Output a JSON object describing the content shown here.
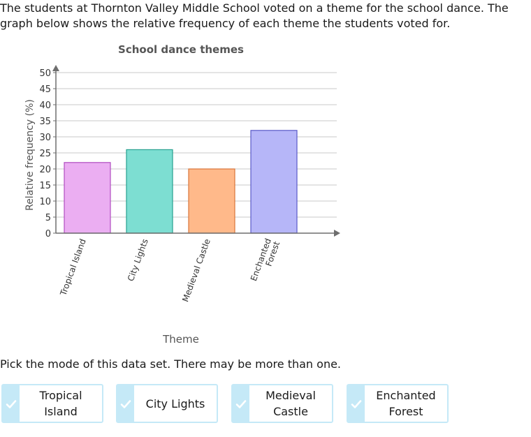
{
  "question": {
    "intro": "The students at Thornton Valley Middle School voted on a theme for the school dance. The graph below shows the relative frequency of each theme the students voted for.",
    "prompt": "Pick the mode of this data set. There may be more than one."
  },
  "chart_data": {
    "type": "bar",
    "title": "School dance themes",
    "xlabel": "Theme",
    "ylabel": "Relative frequency (%)",
    "categories": [
      {
        "lines": [
          "Tropical Island"
        ],
        "value": 22,
        "color": "#ebaef2",
        "stroke": "#b04cc0"
      },
      {
        "lines": [
          "City Lights"
        ],
        "value": 26,
        "color": "#7dded2",
        "stroke": "#26a190"
      },
      {
        "lines": [
          "Medieval Castle"
        ],
        "value": 20,
        "color": "#ffb98a",
        "stroke": "#d8763a"
      },
      {
        "lines": [
          "Enchanted",
          "Forest"
        ],
        "value": 32,
        "color": "#b6b6f8",
        "stroke": "#5a5ac8"
      }
    ],
    "ylim": [
      0,
      50
    ],
    "yticks": [
      0,
      5,
      10,
      15,
      20,
      25,
      30,
      35,
      40,
      45,
      50
    ],
    "grid": true
  },
  "choices": [
    {
      "lines": [
        "Tropical",
        "Island"
      ]
    },
    {
      "lines": [
        "City Lights"
      ]
    },
    {
      "lines": [
        "Medieval",
        "Castle"
      ]
    },
    {
      "lines": [
        "Enchanted",
        "Forest"
      ]
    }
  ],
  "colors": {
    "choice_border": "#c5e9f7",
    "check": "#ffffff",
    "axis": "#6e6e6e",
    "grid": "#c8c8c8"
  }
}
